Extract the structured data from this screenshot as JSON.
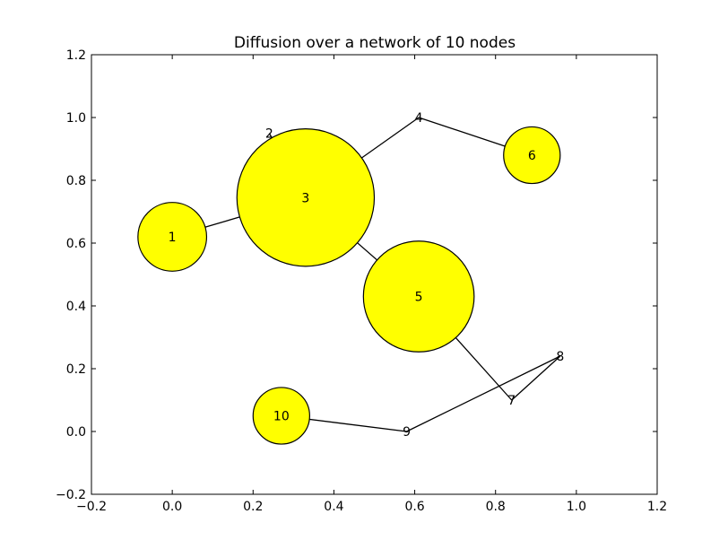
{
  "chart_data": {
    "type": "network",
    "title": "Diffusion over a network of 10 nodes",
    "xlabel": "",
    "ylabel": "",
    "xlim": [
      -0.2,
      1.2
    ],
    "ylim": [
      -0.2,
      1.2
    ],
    "xticks": [
      -0.2,
      0.0,
      0.2,
      0.4,
      0.6,
      0.8,
      1.0,
      1.2
    ],
    "yticks": [
      -0.2,
      0.0,
      0.2,
      0.4,
      0.6,
      0.8,
      1.0,
      1.2
    ],
    "xtick_labels": [
      "−0.2",
      "0.0",
      "0.2",
      "0.4",
      "0.6",
      "0.8",
      "1.0",
      "1.2"
    ],
    "ytick_labels": [
      "−0.2",
      "0.0",
      "0.2",
      "0.4",
      "0.6",
      "0.8",
      "1.0",
      "1.2"
    ],
    "grid": false,
    "node_color": "#ffff00",
    "edge_color": "#000000",
    "nodes": [
      {
        "id": "1",
        "x": 0.0,
        "y": 0.62,
        "size": 0.085
      },
      {
        "id": "2",
        "x": 0.24,
        "y": 0.95,
        "size": 0
      },
      {
        "id": "3",
        "x": 0.33,
        "y": 0.745,
        "size": 0.17
      },
      {
        "id": "4",
        "x": 0.61,
        "y": 1.0,
        "size": 0
      },
      {
        "id": "5",
        "x": 0.61,
        "y": 0.43,
        "size": 0.137
      },
      {
        "id": "6",
        "x": 0.89,
        "y": 0.88,
        "size": 0.07
      },
      {
        "id": "7",
        "x": 0.84,
        "y": 0.1,
        "size": 0
      },
      {
        "id": "8",
        "x": 0.96,
        "y": 0.24,
        "size": 0
      },
      {
        "id": "9",
        "x": 0.58,
        "y": 0.0,
        "size": 0
      },
      {
        "id": "10",
        "x": 0.27,
        "y": 0.05,
        "size": 0.07
      }
    ],
    "edges": [
      [
        "1",
        "3"
      ],
      [
        "2",
        "3"
      ],
      [
        "3",
        "4"
      ],
      [
        "3",
        "5"
      ],
      [
        "4",
        "6"
      ],
      [
        "5",
        "7"
      ],
      [
        "7",
        "8"
      ],
      [
        "8",
        "9"
      ],
      [
        "9",
        "10"
      ]
    ]
  }
}
